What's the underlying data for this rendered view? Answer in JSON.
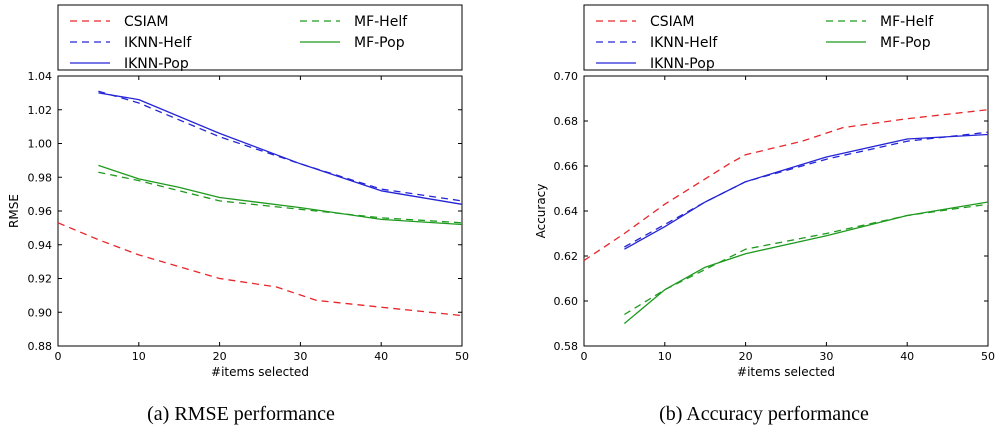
{
  "chart_data": [
    {
      "type": "line",
      "caption": "(a) RMSE performance",
      "xlabel": "#items selected",
      "ylabel": "RMSE",
      "xlim": [
        0,
        50
      ],
      "ylim": [
        0.88,
        1.04
      ],
      "xticks": [
        0,
        10,
        20,
        30,
        40,
        50
      ],
      "yticks": [
        0.88,
        0.9,
        0.92,
        0.94,
        0.96,
        0.98,
        1.0,
        1.02,
        1.04
      ],
      "ytick_labels": [
        "0.88",
        "0.90",
        "0.92",
        "0.94",
        "0.96",
        "0.98",
        "1.00",
        "1.02",
        "1.04"
      ],
      "grid": false,
      "legend_position": "top",
      "legend": {
        "left": [
          "CSIAM",
          "IKNN-Helf",
          "IKNN-Pop"
        ],
        "right": [
          "MF-Helf",
          "MF-Pop"
        ]
      },
      "series": [
        {
          "name": "CSIAM",
          "color": "#e8262b",
          "dash": true,
          "x": [
            0,
            5,
            10,
            15,
            20,
            27,
            32,
            40,
            50
          ],
          "y": [
            0.953,
            0.943,
            0.934,
            0.927,
            0.92,
            0.915,
            0.907,
            0.903,
            0.898
          ]
        },
        {
          "name": "IKNN-Helf",
          "color": "#2424d6",
          "dash": true,
          "x": [
            5,
            10,
            20,
            30,
            40,
            50
          ],
          "y": [
            1.031,
            1.024,
            1.004,
            0.988,
            0.973,
            0.966
          ]
        },
        {
          "name": "IKNN-Pop",
          "color": "#2424d6",
          "dash": false,
          "x": [
            5,
            10,
            20,
            30,
            40,
            50
          ],
          "y": [
            1.03,
            1.026,
            1.006,
            0.988,
            0.972,
            0.964
          ]
        },
        {
          "name": "MF-Helf",
          "color": "#1e9a1e",
          "dash": true,
          "x": [
            5,
            10,
            20,
            30,
            40,
            50
          ],
          "y": [
            0.983,
            0.978,
            0.966,
            0.961,
            0.956,
            0.953
          ]
        },
        {
          "name": "MF-Pop",
          "color": "#1e9a1e",
          "dash": false,
          "x": [
            5,
            10,
            15,
            20,
            30,
            40,
            50
          ],
          "y": [
            0.987,
            0.979,
            0.974,
            0.968,
            0.962,
            0.955,
            0.952
          ]
        }
      ]
    },
    {
      "type": "line",
      "caption": "(b) Accuracy performance",
      "xlabel": "#items selected",
      "ylabel": "Accuracy",
      "xlim": [
        0,
        50
      ],
      "ylim": [
        0.58,
        0.7
      ],
      "xticks": [
        0,
        10,
        20,
        30,
        40,
        50
      ],
      "yticks": [
        0.58,
        0.6,
        0.62,
        0.64,
        0.66,
        0.68,
        0.7
      ],
      "ytick_labels": [
        "0.58",
        "0.60",
        "0.62",
        "0.64",
        "0.66",
        "0.68",
        "0.70"
      ],
      "grid": false,
      "legend_position": "top",
      "legend": {
        "left": [
          "CSIAM",
          "IKNN-Helf",
          "IKNN-Pop"
        ],
        "right": [
          "MF-Helf",
          "MF-Pop"
        ]
      },
      "series": [
        {
          "name": "CSIAM",
          "color": "#e8262b",
          "dash": true,
          "x": [
            0,
            5,
            10,
            18,
            20,
            27,
            32,
            40,
            50
          ],
          "y": [
            0.618,
            0.63,
            0.643,
            0.661,
            0.665,
            0.671,
            0.677,
            0.681,
            0.685
          ]
        },
        {
          "name": "IKNN-Helf",
          "color": "#2424d6",
          "dash": true,
          "x": [
            5,
            10,
            15,
            20,
            30,
            40,
            50
          ],
          "y": [
            0.624,
            0.634,
            0.644,
            0.653,
            0.663,
            0.671,
            0.675
          ]
        },
        {
          "name": "IKNN-Pop",
          "color": "#2424d6",
          "dash": false,
          "x": [
            5,
            10,
            15,
            20,
            30,
            40,
            50
          ],
          "y": [
            0.623,
            0.633,
            0.644,
            0.653,
            0.664,
            0.672,
            0.674
          ]
        },
        {
          "name": "MF-Helf",
          "color": "#1e9a1e",
          "dash": true,
          "x": [
            5,
            10,
            15,
            20,
            30,
            40,
            50
          ],
          "y": [
            0.594,
            0.605,
            0.614,
            0.623,
            0.63,
            0.638,
            0.643
          ]
        },
        {
          "name": "MF-Pop",
          "color": "#1e9a1e",
          "dash": false,
          "x": [
            5,
            10,
            15,
            20,
            30,
            40,
            50
          ],
          "y": [
            0.59,
            0.605,
            0.615,
            0.621,
            0.629,
            0.638,
            0.644
          ]
        }
      ]
    }
  ]
}
